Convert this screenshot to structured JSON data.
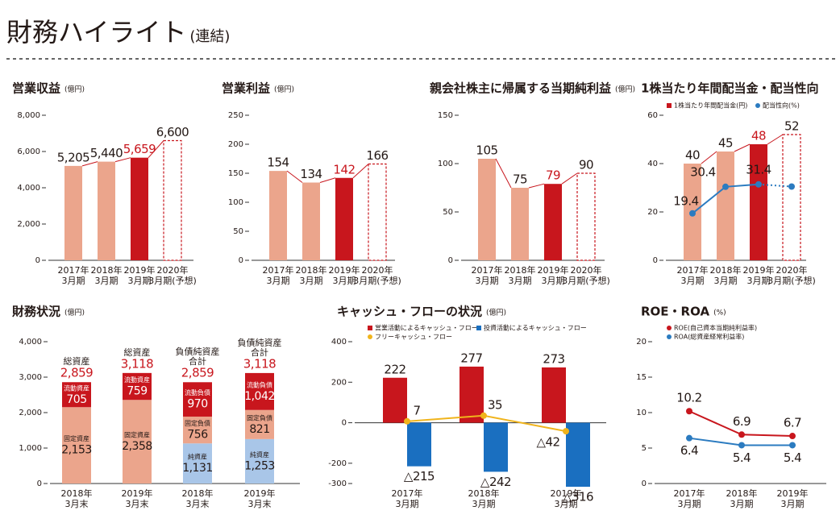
{
  "header": {
    "title": "財務ハイライト",
    "subtitle": "(連結)"
  },
  "chart_data": [
    {
      "type": "bar",
      "title": "営業収益",
      "unit": "(億円)",
      "categories": [
        "2017年\n3月期",
        "2018年\n3月期",
        "2019年\n3月期",
        "2020年\n3月期(予想)"
      ],
      "values": [
        5205,
        5440,
        5659,
        6600
      ],
      "value_labels": [
        "5,205",
        "5,440",
        "5,659",
        "6,600"
      ],
      "colors": [
        "#eba58c",
        "#eba58c",
        "#c8161d",
        "#c8161d"
      ],
      "forecast": [
        false,
        false,
        false,
        true
      ],
      "label_colors": [
        "#231815",
        "#231815",
        "#c8161d",
        "#231815"
      ],
      "trend_line": true,
      "ylim": [
        0,
        8000
      ],
      "yticks": [
        0,
        {
          "value": 2000,
          "label": "2,000"
        },
        {
          "value": 4000,
          "label": "4,000"
        },
        {
          "value": 6000,
          "label": "6,000"
        },
        {
          "value": 8000,
          "label": "8,000"
        }
      ]
    },
    {
      "type": "bar",
      "title": "営業利益",
      "unit": "(億円)",
      "categories": [
        "2017年\n3月期",
        "2018年\n3月期",
        "2019年\n3月期",
        "2020年\n3月期(予想)"
      ],
      "values": [
        154,
        134,
        142,
        166
      ],
      "colors": [
        "#eba58c",
        "#eba58c",
        "#c8161d",
        "#c8161d"
      ],
      "forecast": [
        false,
        false,
        false,
        true
      ],
      "label_colors": [
        "#231815",
        "#231815",
        "#c8161d",
        "#231815"
      ],
      "trend_line": true,
      "ylim": [
        0,
        250
      ],
      "yticks": [
        0,
        50,
        100,
        150,
        200,
        250
      ]
    },
    {
      "type": "bar",
      "title": "親会社株主に帰属する当期純利益",
      "unit": "(億円)",
      "categories": [
        "2017年\n3月期",
        "2018年\n3月期",
        "2019年\n3月期",
        "2020年\n3月期(予想)"
      ],
      "values": [
        105,
        75,
        79,
        90
      ],
      "colors": [
        "#eba58c",
        "#eba58c",
        "#c8161d",
        "#c8161d"
      ],
      "forecast": [
        false,
        false,
        false,
        true
      ],
      "label_colors": [
        "#231815",
        "#231815",
        "#c8161d",
        "#231815"
      ],
      "trend_line": true,
      "ylim": [
        0,
        150
      ],
      "yticks": [
        0,
        50,
        100,
        150
      ]
    },
    {
      "type": "bar-line",
      "title": "1株当たり年間配当金・配当性向",
      "unit": "",
      "categories": [
        "2017年\n3月期",
        "2018年\n3月期",
        "2019年\n3月期",
        "2020年\n3月期(予想)"
      ],
      "forecast": [
        false,
        false,
        false,
        true
      ],
      "trend_line": true,
      "series": [
        {
          "name": "1株当たり年間配当金(円)",
          "kind": "bar",
          "color": "#c8161d",
          "values": [
            40,
            45,
            48,
            52
          ],
          "colors": [
            "#eba58c",
            "#eba58c",
            "#c8161d",
            "#c8161d"
          ],
          "label_colors": [
            "#231815",
            "#231815",
            "#c8161d",
            "#231815"
          ]
        },
        {
          "name": "配当性向(%)",
          "kind": "line",
          "color": "#2b7bc0",
          "values": [
            19.4,
            30.4,
            31.4,
            30.5
          ],
          "labeled": [
            true,
            true,
            true,
            false
          ]
        }
      ],
      "ylim": [
        0,
        60
      ],
      "yticks": [
        0,
        20,
        40,
        60
      ]
    },
    {
      "type": "stacked-bar",
      "title": "財務状況",
      "unit": "(億円)",
      "categories": [
        "2018年\n3月末",
        "2019年\n3月末",
        "2018年\n3月末",
        "2019年\n3月末"
      ],
      "headers": [
        "総資産",
        "総資産",
        "負債純資産\n合計",
        "負債純資産\n合計"
      ],
      "totals": [
        2859,
        3118,
        2859,
        3118
      ],
      "total_labels": [
        "2,859",
        "3,118",
        "2,859",
        "3,118"
      ],
      "series": [
        {
          "name": "固定資産",
          "color": "#eba58c",
          "label_color": "#231815",
          "values": [
            2153,
            2358,
            null,
            null
          ],
          "value_labels": [
            "2,153",
            "2,358",
            null,
            null
          ]
        },
        {
          "name": "流動資産",
          "color": "#c8161d",
          "label_color": "#ffffff",
          "values": [
            705,
            759,
            null,
            null
          ]
        },
        {
          "name": "純資産",
          "color": "#a9c6e8",
          "label_color": "#231815",
          "values": [
            null,
            null,
            1131,
            1253
          ],
          "value_labels": [
            null,
            null,
            "1,131",
            "1,253"
          ]
        },
        {
          "name": "固定負債",
          "color": "#eba58c",
          "label_color": "#231815",
          "values": [
            null,
            null,
            756,
            821
          ]
        },
        {
          "name": "流動負債",
          "color": "#c8161d",
          "label_color": "#ffffff",
          "values": [
            null,
            null,
            970,
            1042
          ],
          "value_labels": [
            null,
            null,
            "970",
            "1,042"
          ]
        }
      ],
      "ylim": [
        0,
        4000
      ],
      "yticks": [
        0,
        {
          "value": 1000,
          "label": "1,000"
        },
        {
          "value": 2000,
          "label": "2,000"
        },
        {
          "value": 3000,
          "label": "3,000"
        },
        {
          "value": 4000,
          "label": "4,000"
        }
      ]
    },
    {
      "type": "bar-line",
      "title": "キャッシュ・フローの状況",
      "unit": "(億円)",
      "categories": [
        "2017年\n3月期",
        "2018年\n3月期",
        "2019年\n3月期"
      ],
      "series": [
        {
          "name": "営業活動によるキャッシュ・フロー",
          "kind": "bar",
          "color": "#c8161d",
          "values": [
            222,
            277,
            273
          ]
        },
        {
          "name": "投資活動によるキャッシュ・フロー",
          "kind": "bar",
          "color": "#1a6fc0",
          "values": [
            -215,
            -242,
            -316
          ],
          "value_labels": [
            "△215",
            "△242",
            "△316"
          ]
        },
        {
          "name": "フリーキャッシュ・フロー",
          "kind": "line",
          "color": "#f0b41c",
          "values": [
            7,
            35,
            -42
          ],
          "value_labels": [
            "7",
            "35",
            "△42"
          ]
        }
      ],
      "ylim": [
        -300,
        400
      ],
      "yticks": [
        400,
        200,
        0,
        -200,
        -300
      ]
    },
    {
      "type": "line",
      "title": "ROE・ROA",
      "unit": "(%)",
      "categories": [
        "2017年\n3月期",
        "2018年\n3月期",
        "2019年\n3月期"
      ],
      "series": [
        {
          "name": "ROE(自己資本当期純利益率)",
          "kind": "line",
          "color": "#c8161d",
          "values": [
            10.2,
            6.9,
            6.7
          ]
        },
        {
          "name": "ROA(総資産経常利益率)",
          "kind": "line",
          "color": "#2b7bc0",
          "values": [
            6.4,
            5.4,
            5.4
          ]
        }
      ],
      "ylim": [
        0,
        20
      ],
      "yticks": [
        0,
        5,
        10,
        15,
        20
      ]
    }
  ]
}
